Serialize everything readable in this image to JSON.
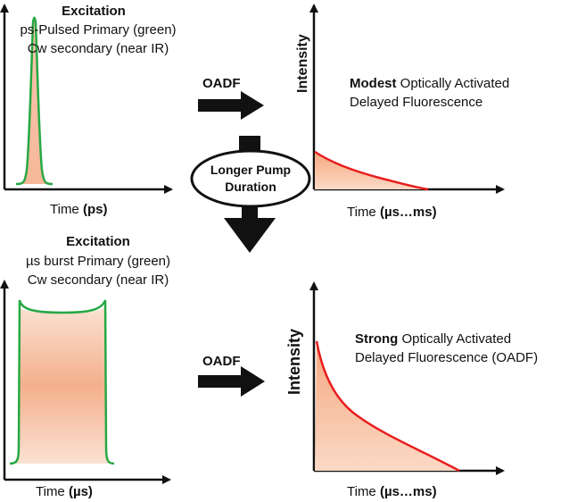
{
  "panel_tl": {
    "title": "Excitation",
    "line1": "ps-Pulsed Primary (green)",
    "line2": "Cw secondary (near IR)",
    "xlabel_prefix": "Time ",
    "xlabel_unit": "(ps)"
  },
  "panel_tr": {
    "ylabel": "Intensity",
    "desc_bold": "Modest",
    "desc_rest": " Optically Activated",
    "desc_line2": "Delayed Fluorescence",
    "xlabel_prefix": "Time ",
    "xlabel_unit": "(µs…ms)"
  },
  "panel_bl": {
    "title": "Excitation",
    "line1": "µs burst Primary (green)",
    "line2": "Cw secondary (near IR)",
    "xlabel_prefix": "Time ",
    "xlabel_unit": "(µs)"
  },
  "panel_br": {
    "ylabel": "Intensity",
    "desc_bold": "Strong",
    "desc_rest": " Optically Activated",
    "desc_line2": "Delayed Fluorescence (OADF)",
    "xlabel_prefix": "Time ",
    "xlabel_unit": "(µs…ms)"
  },
  "center": {
    "oval_line1": "Longer Pump",
    "oval_line2": "Duration"
  },
  "arrows": {
    "top_label": "OADF",
    "bottom_label": "OADF"
  },
  "colors": {
    "pulse_green": "#27a844",
    "decay_red": "#e81d1d",
    "fill_peach": "#f6b899",
    "axis": "#111111"
  }
}
